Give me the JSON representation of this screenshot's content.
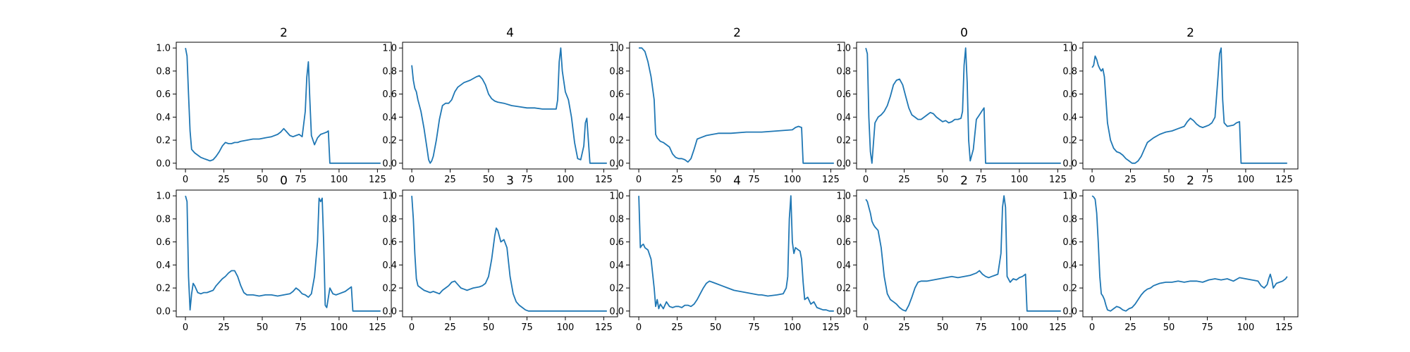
{
  "chart_data": [
    {
      "type": "line",
      "title": "2",
      "xlim": [
        -6,
        134
      ],
      "ylim": [
        -0.05,
        1.05
      ],
      "xticks": [
        "0",
        "25",
        "50",
        "75",
        "100",
        "125"
      ],
      "yticks": [
        "0.0",
        "0.2",
        "0.4",
        "0.6",
        "0.8",
        "1.0"
      ],
      "x": [
        0,
        1,
        2,
        3,
        4,
        6,
        8,
        10,
        12,
        14,
        16,
        18,
        20,
        22,
        24,
        26,
        28,
        30,
        32,
        34,
        36,
        40,
        44,
        48,
        52,
        56,
        60,
        62,
        64,
        66,
        68,
        70,
        72,
        74,
        76,
        78,
        79,
        80,
        81,
        82,
        84,
        86,
        88,
        90,
        92,
        93,
        94,
        96,
        100,
        110,
        120,
        127
      ],
      "y": [
        1.0,
        0.93,
        0.6,
        0.28,
        0.12,
        0.09,
        0.07,
        0.05,
        0.04,
        0.03,
        0.02,
        0.03,
        0.06,
        0.1,
        0.15,
        0.18,
        0.17,
        0.17,
        0.18,
        0.18,
        0.19,
        0.2,
        0.21,
        0.21,
        0.22,
        0.23,
        0.25,
        0.27,
        0.3,
        0.27,
        0.24,
        0.23,
        0.24,
        0.25,
        0.23,
        0.45,
        0.75,
        0.88,
        0.55,
        0.24,
        0.16,
        0.22,
        0.25,
        0.26,
        0.27,
        0.28,
        0.0,
        0.0,
        0.0,
        0.0,
        0.0,
        0.0
      ]
    },
    {
      "type": "line",
      "title": "4",
      "xlim": [
        -6,
        134
      ],
      "ylim": [
        -0.05,
        1.05
      ],
      "xticks": [
        "0",
        "25",
        "50",
        "75",
        "100",
        "125"
      ],
      "yticks": [
        "0.0",
        "0.2",
        "0.4",
        "0.6",
        "0.8",
        "1.0"
      ],
      "x": [
        0,
        1,
        2,
        3,
        4,
        6,
        8,
        10,
        11,
        12,
        13,
        14,
        16,
        18,
        20,
        22,
        24,
        26,
        28,
        30,
        34,
        38,
        42,
        44,
        46,
        48,
        50,
        52,
        54,
        56,
        60,
        65,
        70,
        75,
        80,
        85,
        90,
        94,
        95,
        96,
        97,
        98,
        100,
        102,
        104,
        106,
        108,
        110,
        112,
        113,
        114,
        116,
        118,
        120,
        125,
        127
      ],
      "y": [
        0.85,
        0.72,
        0.65,
        0.62,
        0.55,
        0.45,
        0.3,
        0.12,
        0.03,
        0.0,
        0.02,
        0.06,
        0.2,
        0.38,
        0.5,
        0.52,
        0.52,
        0.55,
        0.62,
        0.66,
        0.7,
        0.72,
        0.75,
        0.76,
        0.73,
        0.68,
        0.6,
        0.56,
        0.54,
        0.53,
        0.52,
        0.5,
        0.49,
        0.48,
        0.48,
        0.47,
        0.47,
        0.47,
        0.55,
        0.88,
        1.0,
        0.8,
        0.62,
        0.55,
        0.4,
        0.18,
        0.04,
        0.03,
        0.15,
        0.35,
        0.39,
        0.0,
        0.0,
        0.0,
        0.0,
        0.0
      ]
    },
    {
      "type": "line",
      "title": "2",
      "xlim": [
        -6,
        134
      ],
      "ylim": [
        -0.05,
        1.05
      ],
      "xticks": [
        "0",
        "25",
        "50",
        "75",
        "100",
        "125"
      ],
      "yticks": [
        "0.0",
        "0.2",
        "0.4",
        "0.6",
        "0.8",
        "1.0"
      ],
      "x": [
        0,
        2,
        4,
        6,
        8,
        10,
        11,
        12,
        14,
        16,
        18,
        20,
        22,
        24,
        26,
        28,
        30,
        32,
        34,
        36,
        38,
        40,
        44,
        48,
        52,
        56,
        60,
        70,
        80,
        90,
        100,
        102,
        104,
        106,
        107,
        110,
        120,
        127
      ],
      "y": [
        1.0,
        1.0,
        0.97,
        0.88,
        0.75,
        0.55,
        0.25,
        0.22,
        0.19,
        0.18,
        0.16,
        0.14,
        0.08,
        0.05,
        0.04,
        0.04,
        0.03,
        0.01,
        0.04,
        0.12,
        0.21,
        0.22,
        0.24,
        0.25,
        0.26,
        0.26,
        0.26,
        0.27,
        0.27,
        0.28,
        0.29,
        0.31,
        0.32,
        0.31,
        0.0,
        0.0,
        0.0,
        0.0
      ]
    },
    {
      "type": "line",
      "title": "0",
      "xlim": [
        -6,
        134
      ],
      "ylim": [
        -0.05,
        1.05
      ],
      "xticks": [
        "0",
        "25",
        "50",
        "75",
        "100",
        "125"
      ],
      "yticks": [
        "0.0",
        "0.2",
        "0.4",
        "0.6",
        "0.8",
        "1.0"
      ],
      "x": [
        0,
        1,
        2,
        3,
        4,
        5,
        6,
        8,
        10,
        12,
        14,
        16,
        18,
        20,
        22,
        24,
        26,
        28,
        30,
        32,
        34,
        36,
        38,
        40,
        42,
        44,
        46,
        48,
        50,
        52,
        54,
        56,
        58,
        60,
        62,
        63,
        64,
        65,
        66,
        67,
        68,
        70,
        72,
        74,
        76,
        77,
        78,
        80,
        90,
        100,
        110,
        120,
        127
      ],
      "y": [
        1.0,
        0.95,
        0.4,
        0.1,
        0.0,
        0.18,
        0.35,
        0.4,
        0.42,
        0.45,
        0.5,
        0.58,
        0.68,
        0.72,
        0.73,
        0.68,
        0.58,
        0.48,
        0.42,
        0.4,
        0.38,
        0.38,
        0.4,
        0.42,
        0.44,
        0.43,
        0.4,
        0.38,
        0.36,
        0.37,
        0.35,
        0.36,
        0.38,
        0.38,
        0.39,
        0.45,
        0.85,
        1.0,
        0.7,
        0.2,
        0.02,
        0.12,
        0.38,
        0.42,
        0.46,
        0.48,
        0.0,
        0.0,
        0.0,
        0.0,
        0.0,
        0.0,
        0.0
      ]
    },
    {
      "type": "line",
      "title": "2",
      "xlim": [
        -6,
        134
      ],
      "ylim": [
        -0.05,
        1.05
      ],
      "xticks": [
        "0",
        "25",
        "50",
        "75",
        "100",
        "125"
      ],
      "yticks": [
        "0.0",
        "0.2",
        "0.4",
        "0.6",
        "0.8",
        "1.0"
      ],
      "x": [
        0,
        1,
        2,
        3,
        4,
        5,
        6,
        7,
        8,
        9,
        10,
        12,
        14,
        16,
        18,
        20,
        22,
        24,
        26,
        28,
        30,
        32,
        34,
        36,
        40,
        44,
        48,
        52,
        56,
        60,
        62,
        64,
        66,
        68,
        70,
        72,
        74,
        76,
        78,
        80,
        82,
        83,
        84,
        85,
        86,
        88,
        92,
        94,
        96,
        97,
        100,
        110,
        120,
        127
      ],
      "y": [
        0.83,
        0.85,
        0.93,
        0.9,
        0.85,
        0.82,
        0.8,
        0.82,
        0.75,
        0.55,
        0.35,
        0.2,
        0.13,
        0.1,
        0.09,
        0.07,
        0.04,
        0.02,
        0.0,
        0.0,
        0.02,
        0.06,
        0.12,
        0.18,
        0.22,
        0.25,
        0.27,
        0.28,
        0.3,
        0.32,
        0.36,
        0.39,
        0.37,
        0.34,
        0.32,
        0.31,
        0.32,
        0.33,
        0.35,
        0.4,
        0.75,
        0.95,
        1.0,
        0.55,
        0.35,
        0.32,
        0.33,
        0.35,
        0.36,
        0.0,
        0.0,
        0.0,
        0.0,
        0.0
      ]
    },
    {
      "type": "line",
      "title": "0",
      "xlim": [
        -6,
        134
      ],
      "ylim": [
        -0.05,
        1.05
      ],
      "xticks": [
        "0",
        "25",
        "50",
        "75",
        "100",
        "125"
      ],
      "yticks": [
        "0.0",
        "0.2",
        "0.4",
        "0.6",
        "0.8",
        "1.0"
      ],
      "x": [
        0,
        1,
        2,
        3,
        4,
        5,
        6,
        8,
        10,
        12,
        14,
        16,
        18,
        20,
        22,
        24,
        26,
        28,
        30,
        32,
        34,
        36,
        38,
        40,
        44,
        48,
        52,
        56,
        60,
        64,
        68,
        70,
        72,
        74,
        76,
        78,
        80,
        82,
        84,
        86,
        87,
        88,
        89,
        90,
        91,
        92,
        94,
        96,
        98,
        100,
        104,
        108,
        109,
        110,
        120,
        127
      ],
      "y": [
        1.0,
        0.95,
        0.3,
        0.01,
        0.15,
        0.24,
        0.22,
        0.16,
        0.15,
        0.16,
        0.16,
        0.17,
        0.18,
        0.22,
        0.25,
        0.28,
        0.3,
        0.33,
        0.35,
        0.35,
        0.3,
        0.22,
        0.16,
        0.14,
        0.14,
        0.13,
        0.14,
        0.14,
        0.13,
        0.14,
        0.15,
        0.17,
        0.2,
        0.18,
        0.15,
        0.14,
        0.12,
        0.15,
        0.3,
        0.6,
        0.98,
        0.95,
        0.98,
        0.6,
        0.05,
        0.03,
        0.2,
        0.15,
        0.14,
        0.15,
        0.17,
        0.21,
        0.0,
        0.0,
        0.0,
        0.0
      ]
    },
    {
      "type": "line",
      "title": "3",
      "xlim": [
        -6,
        134
      ],
      "ylim": [
        -0.05,
        1.05
      ],
      "xticks": [
        "0",
        "25",
        "50",
        "75",
        "100",
        "125"
      ],
      "yticks": [
        "0.0",
        "0.2",
        "0.4",
        "0.6",
        "0.8",
        "1.0"
      ],
      "x": [
        0,
        1,
        2,
        3,
        4,
        6,
        8,
        10,
        12,
        14,
        16,
        18,
        20,
        22,
        24,
        26,
        28,
        30,
        32,
        34,
        36,
        38,
        40,
        44,
        46,
        48,
        50,
        52,
        54,
        55,
        56,
        58,
        60,
        62,
        64,
        66,
        68,
        70,
        72,
        74,
        76,
        80,
        90,
        100,
        110,
        120,
        127
      ],
      "y": [
        1.0,
        0.8,
        0.5,
        0.28,
        0.22,
        0.2,
        0.18,
        0.17,
        0.16,
        0.17,
        0.16,
        0.15,
        0.18,
        0.2,
        0.22,
        0.25,
        0.26,
        0.23,
        0.2,
        0.19,
        0.18,
        0.19,
        0.2,
        0.21,
        0.22,
        0.24,
        0.3,
        0.45,
        0.65,
        0.72,
        0.7,
        0.6,
        0.62,
        0.55,
        0.3,
        0.15,
        0.08,
        0.05,
        0.03,
        0.01,
        0.0,
        0.0,
        0.0,
        0.0,
        0.0,
        0.0,
        0.0
      ]
    },
    {
      "type": "line",
      "title": "4",
      "xlim": [
        -6,
        134
      ],
      "ylim": [
        -0.05,
        1.05
      ],
      "xticks": [
        "0",
        "25",
        "50",
        "75",
        "100",
        "125"
      ],
      "yticks": [
        "0.0",
        "0.2",
        "0.4",
        "0.6",
        "0.8",
        "1.0"
      ],
      "x": [
        0,
        1,
        2,
        3,
        4,
        6,
        8,
        10,
        11,
        12,
        13,
        14,
        15,
        16,
        18,
        20,
        22,
        24,
        26,
        28,
        30,
        32,
        34,
        36,
        38,
        40,
        42,
        44,
        46,
        48,
        50,
        54,
        58,
        62,
        66,
        70,
        74,
        78,
        80,
        84,
        90,
        94,
        96,
        97,
        98,
        99,
        100,
        101,
        102,
        104,
        105,
        106,
        107,
        108,
        110,
        112,
        114,
        116,
        118,
        120,
        122,
        124,
        127
      ],
      "y": [
        1.0,
        0.55,
        0.57,
        0.58,
        0.55,
        0.53,
        0.45,
        0.2,
        0.04,
        0.1,
        0.02,
        0.06,
        0.04,
        0.02,
        0.08,
        0.04,
        0.03,
        0.04,
        0.04,
        0.03,
        0.05,
        0.05,
        0.04,
        0.06,
        0.1,
        0.15,
        0.2,
        0.24,
        0.26,
        0.25,
        0.24,
        0.22,
        0.2,
        0.18,
        0.17,
        0.16,
        0.15,
        0.14,
        0.14,
        0.13,
        0.14,
        0.15,
        0.2,
        0.3,
        0.8,
        1.0,
        0.6,
        0.5,
        0.55,
        0.53,
        0.52,
        0.45,
        0.25,
        0.1,
        0.12,
        0.06,
        0.08,
        0.03,
        0.02,
        0.01,
        0.01,
        0.0,
        0.0
      ]
    },
    {
      "type": "line",
      "title": "2",
      "xlim": [
        -6,
        134
      ],
      "ylim": [
        -0.05,
        1.05
      ],
      "xticks": [
        "0",
        "25",
        "50",
        "75",
        "100",
        "125"
      ],
      "yticks": [
        "0.0",
        "0.2",
        "0.4",
        "0.6",
        "0.8",
        "1.0"
      ],
      "x": [
        0,
        1,
        2,
        3,
        4,
        5,
        6,
        8,
        10,
        12,
        14,
        16,
        18,
        20,
        22,
        24,
        26,
        28,
        30,
        32,
        34,
        36,
        40,
        44,
        48,
        52,
        56,
        60,
        64,
        68,
        72,
        74,
        76,
        78,
        80,
        82,
        84,
        86,
        88,
        89,
        90,
        91,
        92,
        94,
        96,
        98,
        100,
        102,
        104,
        105,
        106,
        110,
        120,
        127
      ],
      "y": [
        0.97,
        0.95,
        0.9,
        0.85,
        0.78,
        0.75,
        0.73,
        0.7,
        0.55,
        0.3,
        0.15,
        0.1,
        0.08,
        0.06,
        0.03,
        0.01,
        0.0,
        0.05,
        0.12,
        0.2,
        0.25,
        0.26,
        0.26,
        0.27,
        0.28,
        0.29,
        0.3,
        0.29,
        0.3,
        0.31,
        0.33,
        0.35,
        0.32,
        0.3,
        0.29,
        0.3,
        0.31,
        0.32,
        0.5,
        0.9,
        1.0,
        0.9,
        0.3,
        0.25,
        0.28,
        0.27,
        0.29,
        0.3,
        0.32,
        0.0,
        0.0,
        0.0,
        0.0,
        0.0
      ]
    },
    {
      "type": "line",
      "title": "2",
      "xlim": [
        -6,
        134
      ],
      "ylim": [
        -0.05,
        1.05
      ],
      "xticks": [
        "0",
        "25",
        "50",
        "75",
        "100",
        "125"
      ],
      "yticks": [
        "0.0",
        "0.2",
        "0.4",
        "0.6",
        "0.8",
        "1.0"
      ],
      "x": [
        0,
        1,
        2,
        3,
        4,
        5,
        6,
        7,
        8,
        9,
        10,
        12,
        14,
        16,
        18,
        20,
        22,
        24,
        26,
        28,
        30,
        32,
        34,
        36,
        38,
        40,
        44,
        48,
        52,
        56,
        60,
        64,
        68,
        72,
        76,
        80,
        84,
        88,
        92,
        96,
        100,
        104,
        108,
        110,
        112,
        114,
        115,
        116,
        117,
        118,
        120,
        122,
        124,
        126,
        127
      ],
      "y": [
        1.0,
        0.99,
        0.97,
        0.85,
        0.6,
        0.3,
        0.15,
        0.13,
        0.1,
        0.05,
        0.01,
        0.0,
        0.02,
        0.04,
        0.03,
        0.01,
        0.0,
        0.02,
        0.03,
        0.06,
        0.1,
        0.14,
        0.17,
        0.19,
        0.2,
        0.22,
        0.24,
        0.25,
        0.25,
        0.26,
        0.25,
        0.26,
        0.26,
        0.25,
        0.27,
        0.28,
        0.27,
        0.28,
        0.26,
        0.29,
        0.28,
        0.27,
        0.26,
        0.22,
        0.2,
        0.23,
        0.28,
        0.32,
        0.27,
        0.2,
        0.24,
        0.25,
        0.26,
        0.28,
        0.3
      ]
    }
  ],
  "colors": {
    "series": "#1f77b4",
    "axis": "#000000",
    "background": "#ffffff"
  }
}
